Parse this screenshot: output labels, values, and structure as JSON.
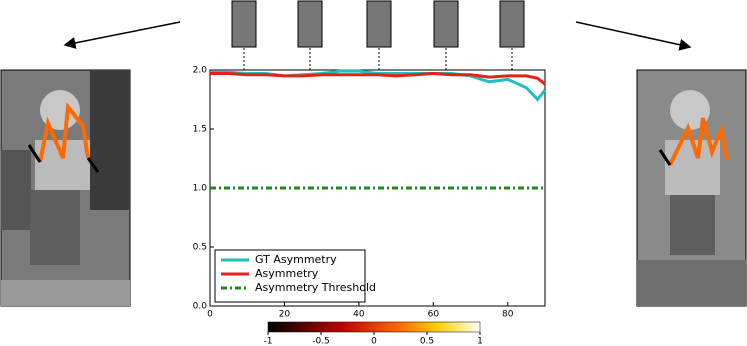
{
  "chart_data": {
    "type": "line",
    "x": [
      0,
      5,
      10,
      15,
      20,
      25,
      30,
      35,
      40,
      45,
      50,
      55,
      60,
      65,
      70,
      75,
      80,
      85,
      88,
      90
    ],
    "series": [
      {
        "name": "GT Asymmetry",
        "color": "#1fc0c0",
        "style": "solid",
        "values": [
          1.98,
          1.98,
          1.97,
          1.97,
          1.95,
          1.96,
          1.97,
          1.99,
          1.99,
          1.97,
          1.97,
          1.97,
          1.97,
          1.97,
          1.95,
          1.9,
          1.92,
          1.85,
          1.75,
          1.83
        ]
      },
      {
        "name": "Asymmetry",
        "color": "#e8201c",
        "style": "solid",
        "values": [
          1.97,
          1.97,
          1.96,
          1.96,
          1.95,
          1.95,
          1.96,
          1.96,
          1.96,
          1.96,
          1.95,
          1.96,
          1.97,
          1.96,
          1.96,
          1.94,
          1.95,
          1.95,
          1.93,
          1.88
        ]
      },
      {
        "name": "Asymmetry Threshold",
        "color": "#1a8a1a",
        "style": "dashdot",
        "values": [
          1,
          1,
          1,
          1,
          1,
          1,
          1,
          1,
          1,
          1,
          1,
          1,
          1,
          1,
          1,
          1,
          1,
          1,
          1,
          1
        ]
      }
    ],
    "xlim": [
      0,
      90
    ],
    "xticks": [
      0,
      20,
      40,
      60,
      80
    ],
    "ylim": [
      0,
      2
    ],
    "yticks": [
      {
        "value": 0,
        "label": "0.0"
      },
      0.5,
      {
        "value": 1,
        "label": "1.0"
      },
      1.5,
      {
        "value": 2,
        "label": "2.0"
      }
    ],
    "legend": "lower left",
    "colorbar": {
      "lim": [
        -1,
        1
      ],
      "ticks": [
        -1,
        -0.5,
        0,
        0.5,
        1
      ]
    }
  }
}
